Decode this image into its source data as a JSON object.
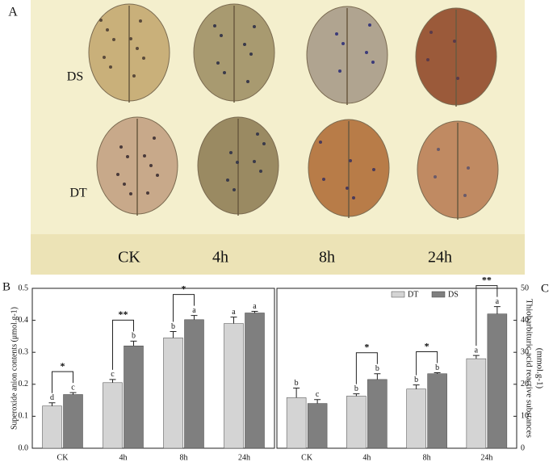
{
  "panel_a": {
    "label": "A",
    "rows": [
      "DS",
      "DT"
    ],
    "columns": [
      "CK",
      "4h",
      "8h",
      "24h"
    ]
  },
  "chart_data": [
    {
      "type": "bar",
      "panel": "B",
      "y_label": "Superoxide anion contents (μmol.g-1)",
      "categories": [
        "CK",
        "4h",
        "8h",
        "24h"
      ],
      "series": [
        {
          "color": "#d4d4d4",
          "values": [
            0.132,
            0.205,
            0.345,
            0.39
          ],
          "errors": [
            0.01,
            0.01,
            0.02,
            0.02
          ],
          "letters": [
            "d",
            "c",
            "b",
            "a"
          ]
        },
        {
          "color": "#7f7f7f",
          "values": [
            0.168,
            0.32,
            0.402,
            0.423
          ],
          "errors": [
            0.006,
            0.015,
            0.013,
            0.005
          ],
          "letters": [
            "c",
            "b",
            "a",
            "a"
          ]
        }
      ],
      "significance": [
        "*",
        "**",
        "*",
        null
      ],
      "ylim": [
        0,
        0.5
      ],
      "yticks": [
        {
          "value": 0,
          "label": "0.0"
        },
        0.1,
        0.2,
        0.3,
        0.4,
        0.5
      ]
    },
    {
      "type": "bar",
      "panel": "C",
      "y_label": [
        "Thiobarbituric acid reactive substances",
        "(mmol.g-1)"
      ],
      "categories": [
        "CK",
        "4h",
        "8h",
        "24h"
      ],
      "series": [
        {
          "name": "DT",
          "color": "#d4d4d4",
          "values": [
            15.8,
            16.3,
            18.5,
            28
          ],
          "errors": [
            3,
            0.7,
            1.3,
            1
          ],
          "letters": [
            "b",
            "b",
            "b",
            "a"
          ]
        },
        {
          "name": "DS",
          "color": "#7f7f7f",
          "values": [
            14,
            21.5,
            23.3,
            42
          ],
          "errors": [
            1.2,
            1.8,
            0.3,
            2.3
          ],
          "letters": [
            "c",
            "b",
            "b",
            "a"
          ]
        }
      ],
      "significance": [
        null,
        "*",
        "*",
        "**"
      ],
      "ylim": [
        0,
        50
      ],
      "yticks": [
        0,
        10,
        20,
        30,
        40,
        50
      ]
    }
  ]
}
